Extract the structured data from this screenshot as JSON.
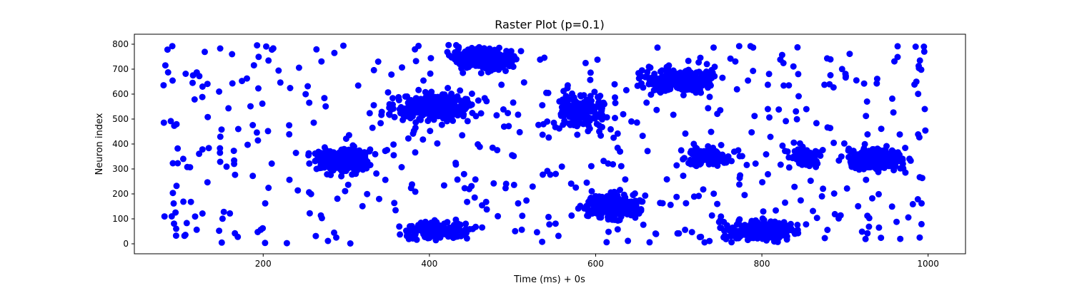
{
  "chart_data": {
    "type": "scatter",
    "title": "Raster Plot (p=0.1)",
    "xlabel": "Time (ms) + 0s",
    "ylabel": "Neuron index",
    "xlim": [
      45,
      1045
    ],
    "ylim": [
      -40,
      840
    ],
    "xticks": [
      200,
      400,
      600,
      800,
      1000
    ],
    "yticks": [
      0,
      100,
      200,
      300,
      400,
      500,
      600,
      700,
      800
    ],
    "grid": false,
    "legend": "none",
    "marker_color": "#0000ff",
    "clusters": [
      {
        "t": [
          250,
          340
        ],
        "n": [
          270,
          400
        ],
        "count": 260
      },
      {
        "t": [
          340,
          470
        ],
        "n": [
          480,
          620
        ],
        "count": 300
      },
      {
        "t": [
          415,
          520
        ],
        "n": [
          680,
          800
        ],
        "count": 280
      },
      {
        "t": [
          540,
          630
        ],
        "n": [
          430,
          640
        ],
        "count": 150
      },
      {
        "t": [
          575,
          665
        ],
        "n": [
          80,
          220
        ],
        "count": 260
      },
      {
        "t": [
          640,
          760
        ],
        "n": [
          590,
          720
        ],
        "count": 260
      },
      {
        "t": [
          740,
          860
        ],
        "n": [
          0,
          110
        ],
        "count": 280
      },
      {
        "t": [
          890,
          980
        ],
        "n": [
          280,
          400
        ],
        "count": 280
      },
      {
        "t": [
          350,
          470
        ],
        "n": [
          0,
          110
        ],
        "count": 140
      },
      {
        "t": [
          690,
          780
        ],
        "n": [
          300,
          400
        ],
        "count": 100
      },
      {
        "t": [
          820,
          880
        ],
        "n": [
          300,
          400
        ],
        "count": 60
      }
    ],
    "scattered": {
      "t": [
        80,
        1000
      ],
      "n": [
        0,
        800
      ],
      "count": 500
    },
    "sample_points": [
      {
        "t": 90,
        "n": 110
      },
      {
        "t": 93,
        "n": 473
      },
      {
        "t": 108,
        "n": 83
      },
      {
        "t": 112,
        "n": 307
      },
      {
        "t": 113,
        "n": 168
      },
      {
        "t": 127,
        "n": 630
      },
      {
        "t": 133,
        "n": 641
      },
      {
        "t": 147,
        "n": 610
      },
      {
        "t": 148,
        "n": 383
      },
      {
        "t": 148,
        "n": 365
      },
      {
        "t": 163,
        "n": 643
      },
      {
        "t": 165,
        "n": 334
      },
      {
        "t": 166,
        "n": 42
      },
      {
        "t": 170,
        "n": 460
      },
      {
        "t": 985,
        "n": 790
      },
      {
        "t": 995,
        "n": 790
      },
      {
        "t": 996,
        "n": 540
      },
      {
        "t": 990,
        "n": 267
      }
    ]
  }
}
